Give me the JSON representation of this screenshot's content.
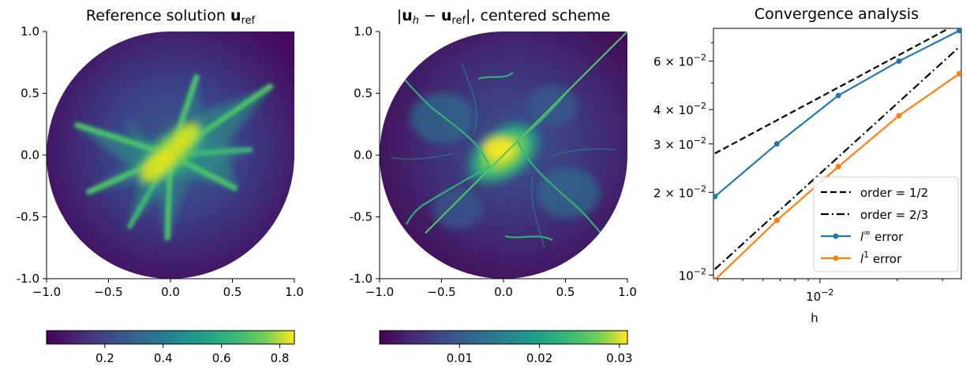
{
  "chart_data": [
    {
      "type": "heatmap",
      "title_text": "Reference solution ",
      "title_math_base": "u",
      "title_math_sub": "ref",
      "x_ticks": [
        "−1.0",
        "−0.5",
        "0.0",
        "0.5",
        "1.0"
      ],
      "y_ticks": [
        "1.0",
        "0.5",
        "0.0",
        "-0.5",
        "-1.0"
      ],
      "xlim": [
        -1.0,
        1.0
      ],
      "ylim": [
        -1.0,
        1.0
      ],
      "colormap": "viridis",
      "colorbar_range": [
        0.0,
        0.85
      ],
      "colorbar_ticks": [
        "0.2",
        "0.4",
        "0.6",
        "0.8"
      ],
      "colorbar_tick_values": [
        0.2,
        0.4,
        0.6,
        0.8
      ]
    },
    {
      "type": "heatmap",
      "title_text": "|u_h − u_ref|, centered scheme",
      "x_ticks": [
        "−1.0",
        "−0.5",
        "0.0",
        "0.5",
        "1.0"
      ],
      "y_ticks": [
        "1.0",
        "0.5",
        "0.0",
        "-0.5",
        "-1.0"
      ],
      "xlim": [
        -1.0,
        1.0
      ],
      "ylim": [
        -1.0,
        1.0
      ],
      "colormap": "viridis",
      "colorbar_range": [
        0.0,
        0.031
      ],
      "colorbar_ticks": [
        "0.01",
        "0.02",
        "0.03"
      ],
      "colorbar_tick_values": [
        0.01,
        0.02,
        0.03
      ]
    },
    {
      "type": "line",
      "title": "Convergence analysis",
      "xlabel": "h",
      "xscale": "log",
      "yscale": "log",
      "xlim": [
        0.00385,
        0.0355
      ],
      "ylim": [
        0.0097,
        0.079
      ],
      "x_tick_label": "10^{-2}",
      "y_tick_labels": [
        "6 × 10^{-2}",
        "4 × 10^{-2}",
        "3 × 10^{-2}",
        "2 × 10^{-2}",
        "10^{-2}"
      ],
      "y_tick_values": [
        0.06,
        0.04,
        0.03,
        0.02,
        0.01
      ],
      "legend_position": "lower-right",
      "series": [
        {
          "name": "order = 1/2",
          "style": "dashed",
          "color": "#000000",
          "x": [
            0.0039,
            0.033
          ],
          "y": [
            0.0277,
            0.0805
          ]
        },
        {
          "name": "order = 2/3",
          "style": "dashdot",
          "color": "#000000",
          "x": [
            0.0039,
            0.0344
          ],
          "y": [
            0.0105,
            0.0668
          ]
        },
        {
          "name": "l^∞ error",
          "style": "solid-marker",
          "color": "#1f77b4",
          "x": [
            0.0039,
            0.0068,
            0.0118,
            0.0203,
            0.0349
          ],
          "y": [
            0.0193,
            0.03,
            0.045,
            0.06,
            0.0775
          ]
        },
        {
          "name": "l^1 error",
          "style": "solid-marker",
          "color": "#ff7f0e",
          "x": [
            0.0039,
            0.0068,
            0.0118,
            0.0203,
            0.0349
          ],
          "y": [
            0.0096,
            0.0158,
            0.0248,
            0.038,
            0.054
          ]
        }
      ]
    }
  ]
}
